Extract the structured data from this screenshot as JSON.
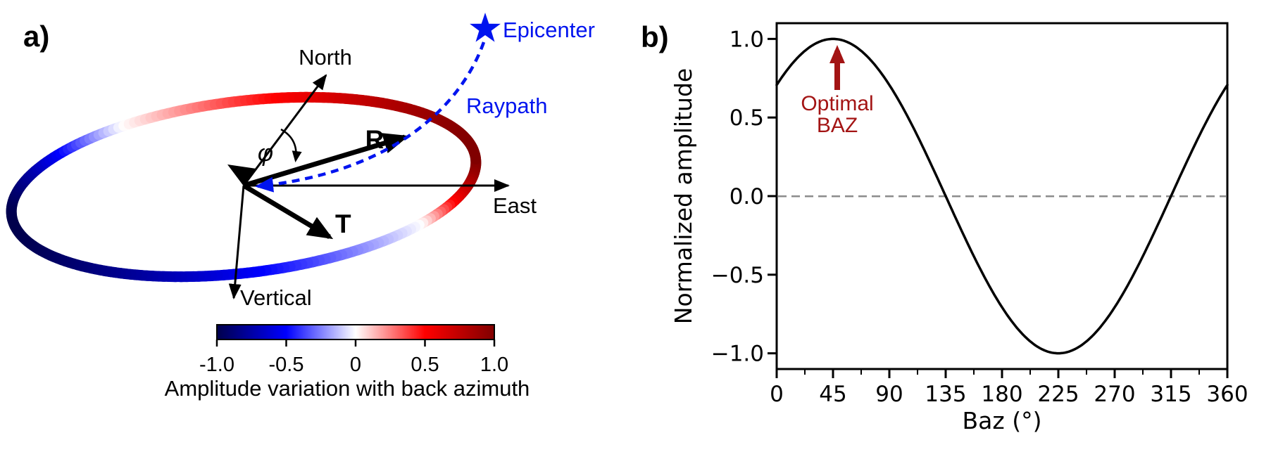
{
  "figure_labels": {
    "panel_a": "a)",
    "panel_b": "b)"
  },
  "panel_a": {
    "axis_labels": {
      "north": "North",
      "east": "East",
      "vertical": "Vertical"
    },
    "vector_labels": {
      "radial": "R",
      "transverse": "T",
      "angle_phi": "φ"
    },
    "epicenter_label": "Epicenter",
    "raypath_label": "Raypath",
    "colors": {
      "ray_blue": "#0014EF"
    }
  },
  "chart_data": [
    {
      "panel": "b",
      "type": "line",
      "xlabel": "Baz (°)",
      "ylabel": "Normalized amplitude",
      "xlim": [
        0,
        360
      ],
      "ylim": [
        -1.1,
        1.1
      ],
      "xticks": [
        0,
        45,
        90,
        135,
        180,
        225,
        270,
        315,
        360
      ],
      "yticks": [
        "1.0",
        "0.5",
        "0.0",
        "−0.5",
        "−1.0"
      ],
      "grid": false,
      "zero_line": {
        "y": 0,
        "style": "dashed",
        "color": "#8C8C8C"
      },
      "x": [
        0,
        15,
        30,
        45,
        60,
        75,
        90,
        105,
        120,
        135,
        150,
        165,
        180,
        195,
        210,
        225,
        240,
        255,
        270,
        285,
        300,
        315,
        330,
        345,
        360
      ],
      "series": [
        {
          "name": "Normalized amplitude",
          "model": "cos(baz − 45°)",
          "amplitude": 1.0,
          "phase_deg": 45,
          "values": [
            0.707,
            0.866,
            0.966,
            1.0,
            0.966,
            0.866,
            0.707,
            0.5,
            0.259,
            0.0,
            -0.259,
            -0.5,
            -0.707,
            -0.866,
            -0.966,
            -1.0,
            -0.966,
            -0.866,
            -0.707,
            -0.5,
            -0.259,
            0.0,
            0.259,
            0.5,
            0.707
          ]
        }
      ],
      "annotation": {
        "text": [
          "Optimal",
          "BAZ"
        ],
        "arrow_points_to": {
          "baz_deg": 45,
          "amplitude": 1.0
        },
        "color": "#A31414"
      },
      "line_color": "#000000"
    },
    {
      "panel": "a",
      "type": "colorbar",
      "label": "Amplitude variation with back azimuth",
      "ticks": [
        "-1.0",
        "-0.5",
        "0",
        "0.5",
        "1.0"
      ],
      "range": [
        -1,
        1
      ],
      "colormap": "seismic",
      "colormap_stops": [
        "#00004C",
        "#0000FF",
        "#FFFFFF",
        "#FF0000",
        "#800000"
      ]
    }
  ]
}
